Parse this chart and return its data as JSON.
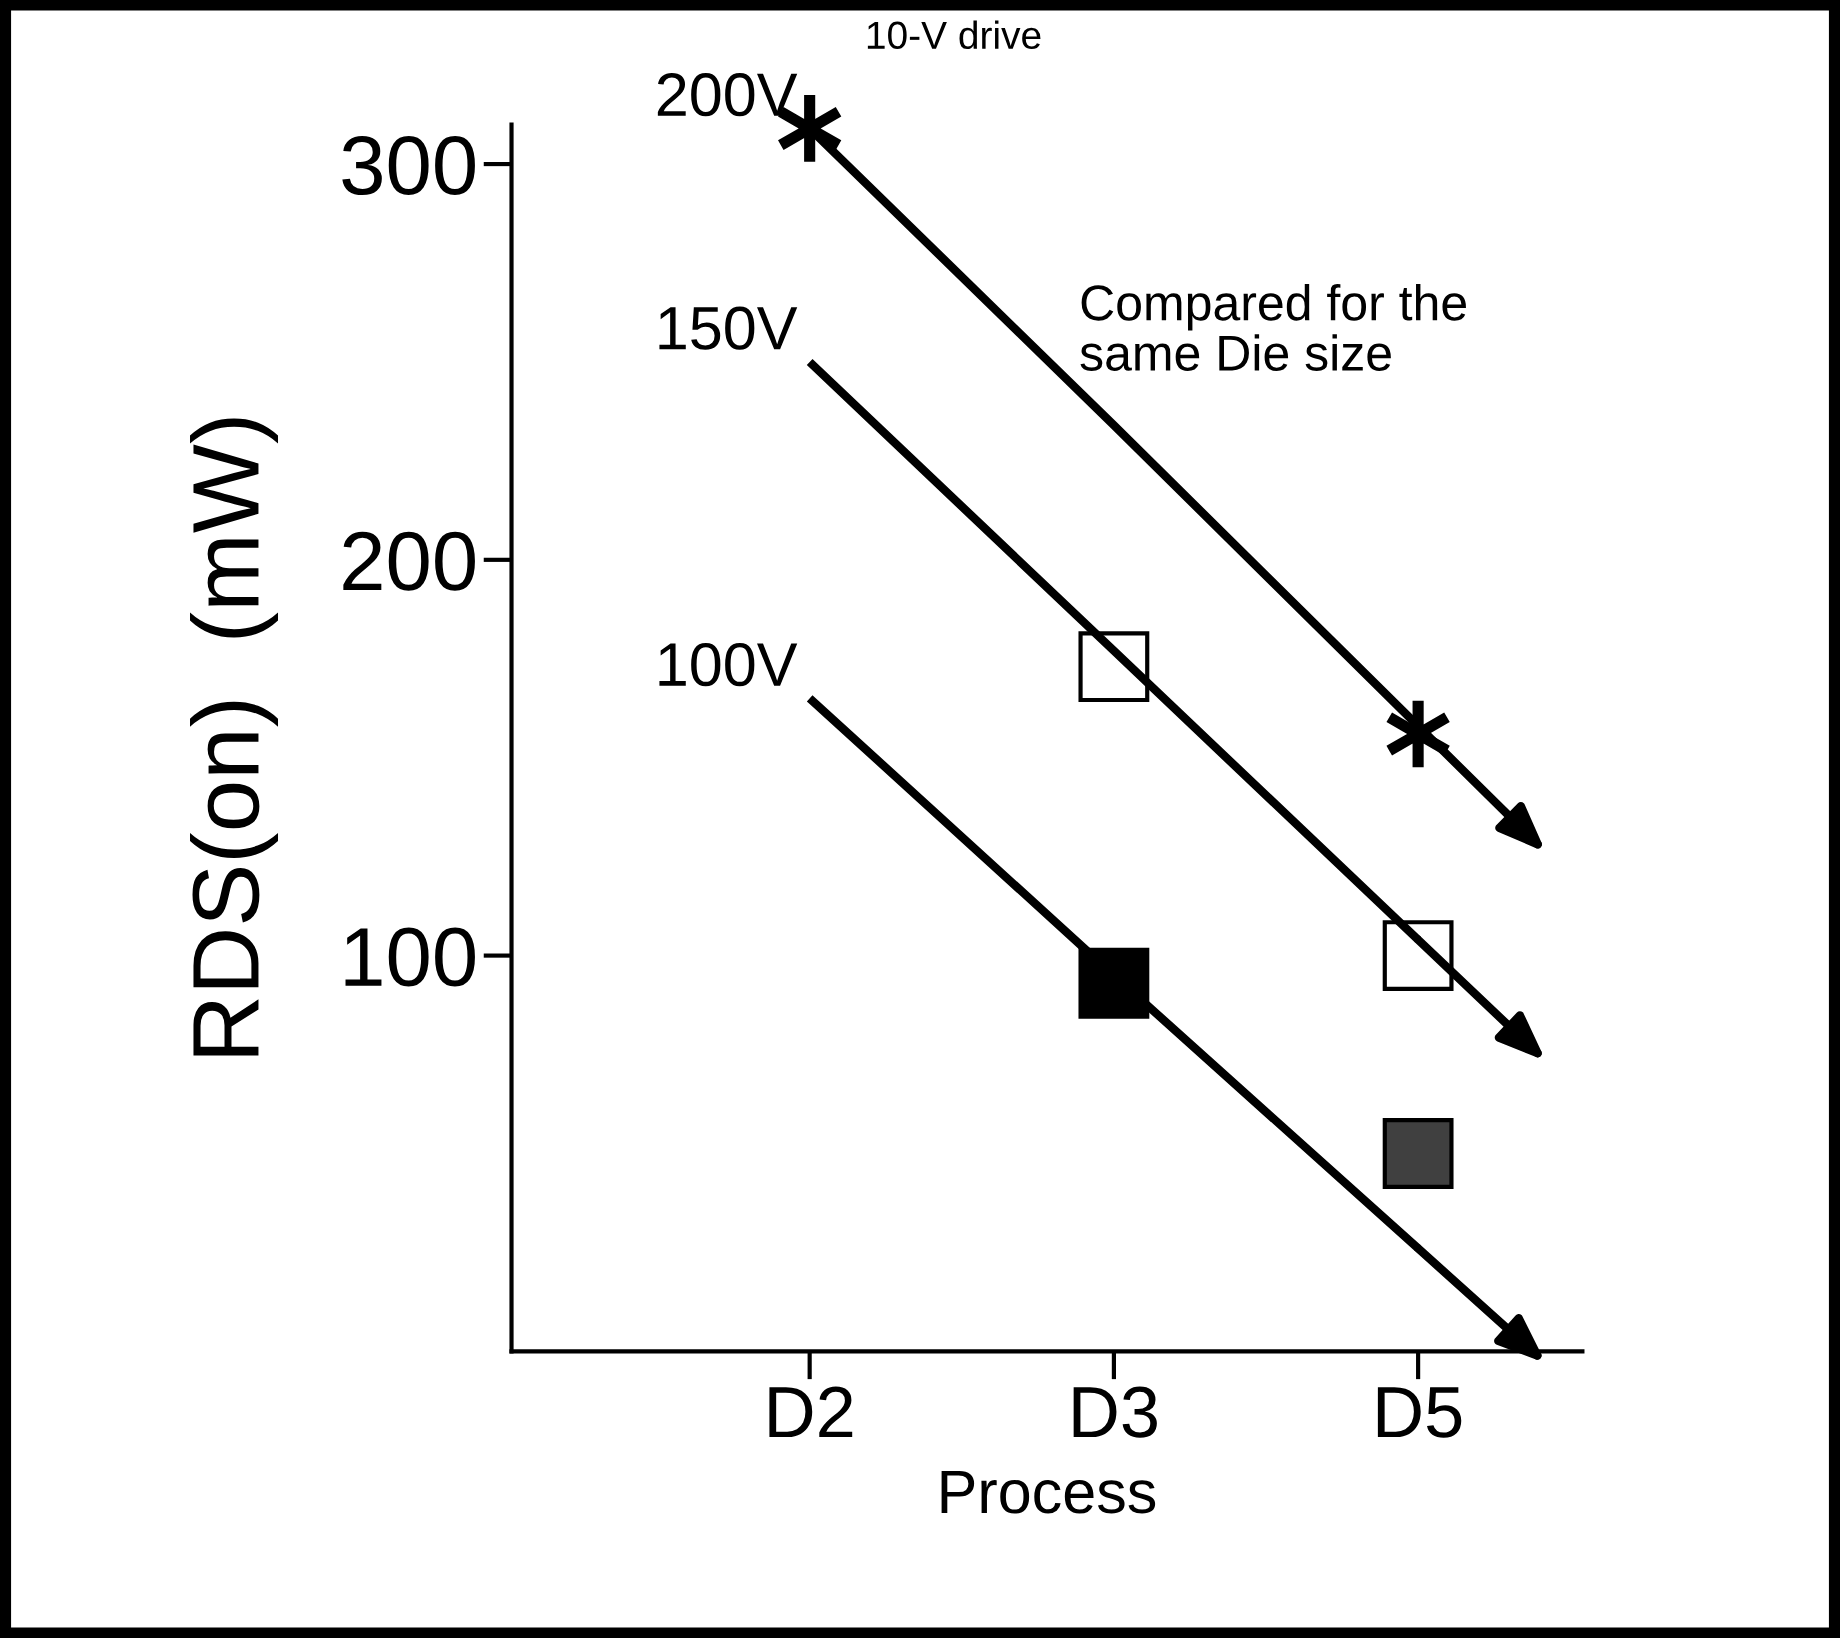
{
  "chart_data": {
    "type": "scatter",
    "xlabel": "Process",
    "ylabel": "RDS(on)  (mW)",
    "categories": [
      "D2",
      "D3",
      "D5"
    ],
    "ylim": [
      0,
      310
    ],
    "yticks": [
      100,
      200,
      300
    ],
    "grid": false,
    "legend": false,
    "annotations": [
      "10-V drive",
      "Compared for the\nsame Die size"
    ],
    "series": [
      {
        "name": "200V",
        "type": "line",
        "color": "#000000",
        "values": [
          309,
          234,
          158
        ]
      },
      {
        "name": "150V",
        "type": "line",
        "color": "#000000",
        "values": [
          250,
          177,
          104
        ]
      },
      {
        "name": "100V",
        "type": "line",
        "color": "#000000",
        "values": [
          165,
          95,
          26
        ]
      },
      {
        "marker": "cross",
        "color": "#000000",
        "x": [
          "D2",
          "D5"
        ],
        "values": [
          309,
          156
        ]
      },
      {
        "marker": "square",
        "colors": [
          "#ffffff",
          "#ffffff"
        ],
        "x": [
          "D3",
          "D5"
        ],
        "values": [
          173,
          100
        ]
      },
      {
        "marker": "square",
        "colors": [
          "#000000",
          "#404040"
        ],
        "x": [
          "D3",
          "D5"
        ],
        "values": [
          93,
          50
        ]
      }
    ]
  }
}
